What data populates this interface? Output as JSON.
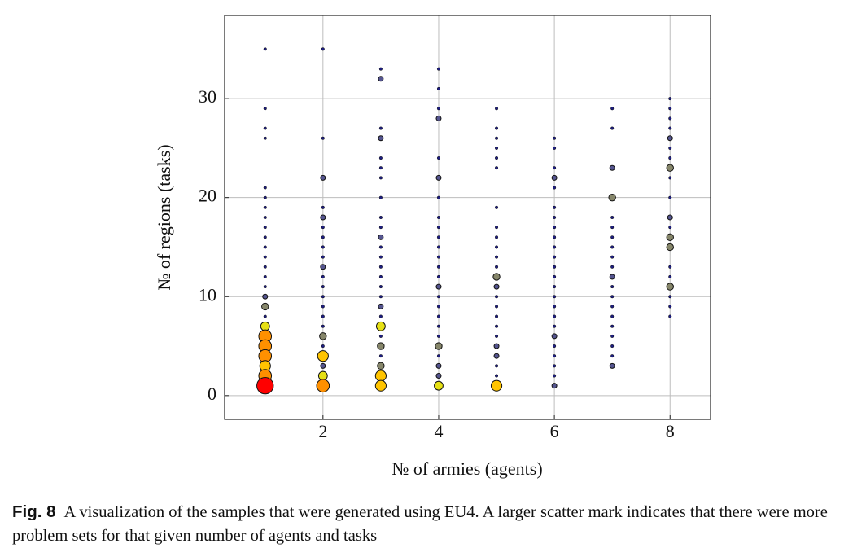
{
  "chart_data": {
    "type": "scatter",
    "x_label": "№ of armies (agents)",
    "y_label": "№ of regions (tasks)",
    "xlim": [
      0.3,
      8.7
    ],
    "ylim": [
      -2.4,
      38.4
    ],
    "xticks": [
      2,
      4,
      6,
      8
    ],
    "yticks": [
      0,
      10,
      20,
      30
    ],
    "grid": true,
    "colormap": {
      "values": [
        1,
        2,
        3,
        4,
        5,
        6,
        8
      ],
      "colors": [
        "#1c1c80",
        "#55558f",
        "#86866a",
        "#e6e014",
        "#ffc400",
        "#ff9000",
        "#ff0000"
      ]
    },
    "series": [
      {
        "x": 1,
        "y": [
          35,
          29,
          27,
          26,
          21,
          20,
          19,
          18,
          17,
          16,
          15,
          14,
          13,
          12,
          11,
          10,
          9,
          8,
          7,
          6,
          5,
          4,
          3,
          2,
          1
        ],
        "sizes": [
          1,
          1,
          1,
          1,
          1,
          1,
          1,
          1,
          1,
          1,
          1,
          1,
          1,
          1,
          1,
          2,
          3,
          1,
          4,
          6,
          6,
          6,
          5,
          6,
          8
        ]
      },
      {
        "x": 2,
        "y": [
          35,
          26,
          22,
          19,
          18,
          17,
          16,
          15,
          14,
          13,
          12,
          11,
          10,
          9,
          8,
          7,
          6,
          5,
          4,
          3,
          2,
          1
        ],
        "sizes": [
          1,
          1,
          2,
          1,
          2,
          1,
          1,
          1,
          1,
          2,
          1,
          1,
          1,
          1,
          1,
          1,
          3,
          1,
          5,
          2,
          4,
          6
        ]
      },
      {
        "x": 3,
        "y": [
          33,
          32,
          27,
          26,
          24,
          23,
          22,
          20,
          18,
          17,
          16,
          15,
          14,
          13,
          12,
          11,
          10,
          9,
          8,
          7,
          6,
          5,
          4,
          3,
          2,
          1
        ],
        "sizes": [
          1,
          2,
          1,
          2,
          1,
          1,
          1,
          1,
          1,
          1,
          2,
          1,
          1,
          1,
          1,
          1,
          1,
          2,
          1,
          4,
          1,
          3,
          1,
          3,
          5,
          5
        ]
      },
      {
        "x": 4,
        "y": [
          33,
          31,
          29,
          28,
          24,
          22,
          20,
          18,
          17,
          16,
          15,
          14,
          13,
          12,
          11,
          10,
          9,
          8,
          7,
          6,
          5,
          4,
          3,
          2,
          1
        ],
        "sizes": [
          1,
          1,
          1,
          2,
          1,
          2,
          1,
          1,
          1,
          1,
          1,
          1,
          1,
          1,
          2,
          1,
          1,
          1,
          1,
          1,
          3,
          1,
          2,
          2,
          4
        ]
      },
      {
        "x": 5,
        "y": [
          29,
          27,
          26,
          25,
          24,
          23,
          19,
          17,
          16,
          15,
          14,
          13,
          12,
          11,
          10,
          9,
          8,
          7,
          6,
          5,
          4,
          3,
          2,
          1
        ],
        "sizes": [
          1,
          1,
          1,
          1,
          1,
          1,
          1,
          1,
          1,
          1,
          1,
          1,
          3,
          2,
          1,
          1,
          1,
          1,
          1,
          2,
          2,
          1,
          1,
          5
        ]
      },
      {
        "x": 6,
        "y": [
          26,
          25,
          23,
          22,
          21,
          19,
          18,
          17,
          16,
          15,
          14,
          13,
          12,
          11,
          10,
          9,
          8,
          7,
          6,
          5,
          4,
          3,
          2,
          1
        ],
        "sizes": [
          1,
          1,
          1,
          2,
          1,
          1,
          1,
          1,
          1,
          1,
          1,
          1,
          1,
          1,
          1,
          1,
          1,
          1,
          2,
          1,
          1,
          1,
          1,
          2
        ]
      },
      {
        "x": 7,
        "y": [
          29,
          27,
          23,
          20,
          18,
          17,
          16,
          15,
          14,
          13,
          12,
          11,
          10,
          9,
          8,
          7,
          6,
          5,
          4,
          3
        ],
        "sizes": [
          1,
          1,
          2,
          3,
          1,
          1,
          1,
          1,
          1,
          1,
          2,
          1,
          1,
          1,
          1,
          1,
          1,
          1,
          1,
          2
        ]
      },
      {
        "x": 8,
        "y": [
          30,
          29,
          28,
          27,
          26,
          25,
          24,
          23,
          22,
          20,
          18,
          17,
          16,
          15,
          13,
          12,
          11,
          10,
          9,
          8
        ],
        "sizes": [
          1,
          1,
          1,
          1,
          2,
          1,
          1,
          3,
          1,
          1,
          2,
          1,
          3,
          3,
          1,
          1,
          3,
          1,
          1,
          1
        ]
      }
    ]
  },
  "caption": {
    "label": "Fig. 8",
    "text": "A visualization of the samples that were generated using EU4. A larger scatter mark indicates that there were more problem sets for that given number of agents and tasks"
  }
}
